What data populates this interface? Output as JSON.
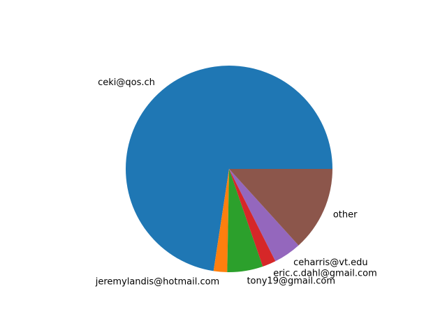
{
  "chart_data": {
    "type": "pie",
    "categories": [
      "ceki@qos.ch",
      "jeremylandis@hotmail.com",
      "tony19@gmail.com",
      "eric.c.dahl@gmail.com",
      "ceharris@vt.edu",
      "other"
    ],
    "values": [
      75.5,
      2.2,
      5.8,
      2.2,
      4.5,
      13.8
    ],
    "colors": [
      "#1f77b4",
      "#ff7f0e",
      "#2ca02c",
      "#d62728",
      "#9467bd",
      "#8c564b"
    ],
    "start_angle_deg": 0,
    "direction": "counterclockwise",
    "title": "",
    "legend": "none"
  }
}
